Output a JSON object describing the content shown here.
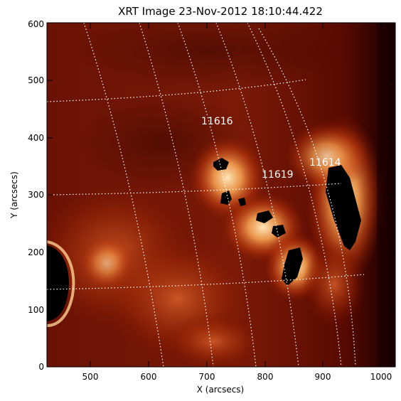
{
  "title": "XRT Image 23-Nov-2012 18:10:44.422",
  "x_axis": {
    "label": "X (arcsecs)",
    "ticks": [
      "500",
      "600",
      "700",
      "800",
      "900",
      "1000"
    ],
    "range": [
      424,
      1024
    ]
  },
  "y_axis": {
    "label": "Y (arcsecs)",
    "ticks": [
      "0",
      "100",
      "200",
      "300",
      "400",
      "500",
      "600"
    ],
    "range": [
      0,
      600
    ]
  },
  "regions": [
    {
      "label": "11616",
      "x": 740,
      "y": 428
    },
    {
      "label": "11619",
      "x": 800,
      "y": 335
    },
    {
      "label": "11614",
      "x": 915,
      "y": 360
    }
  ],
  "colors": {
    "background": "#5a0800",
    "bright": "#ffd9a0",
    "grid": "#ffffff",
    "saturated": "#000000"
  }
}
